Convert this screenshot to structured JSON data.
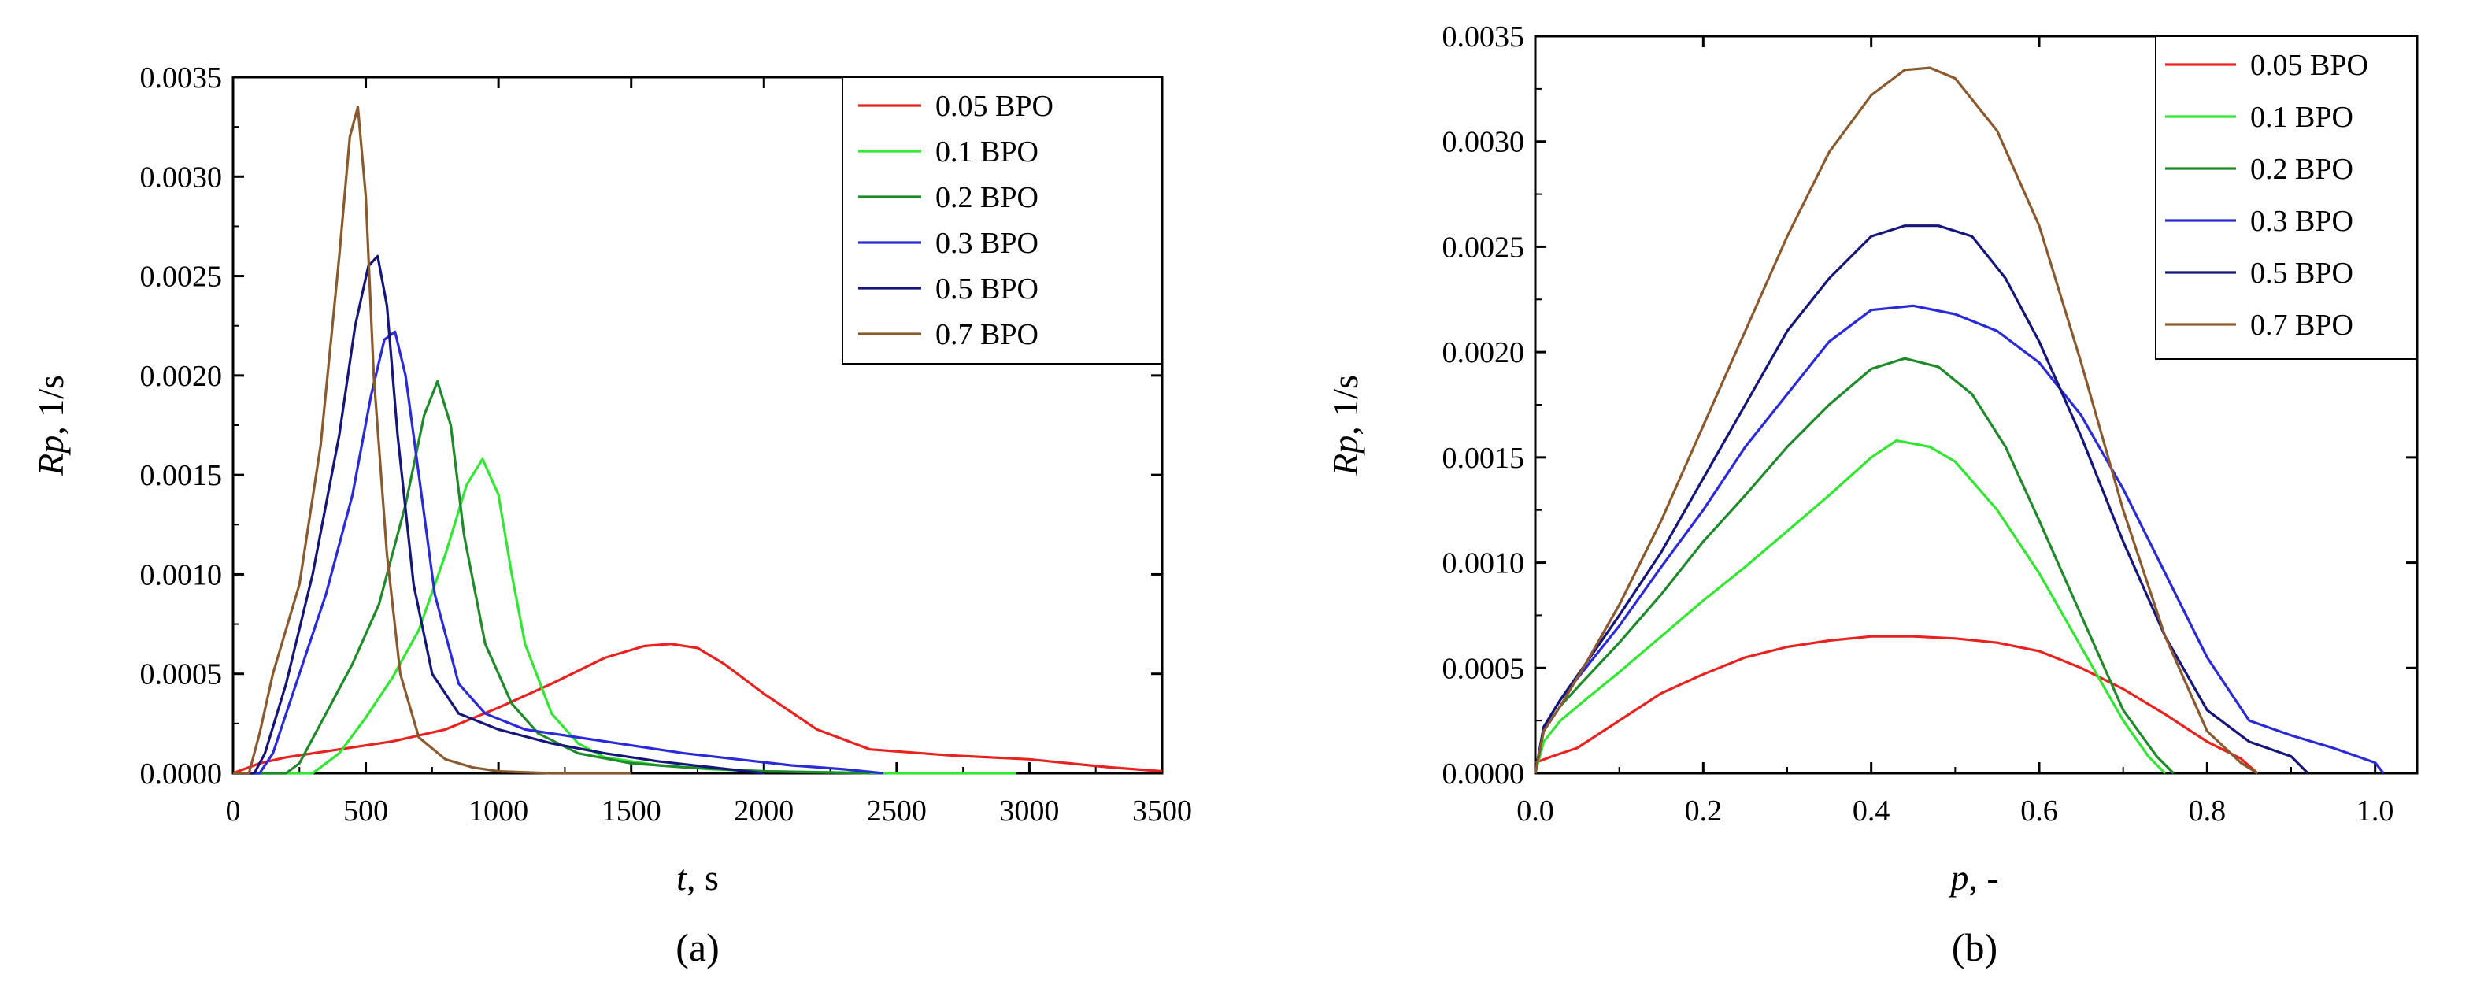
{
  "figure": {
    "panel_a_label": "(a)",
    "panel_b_label": "(b)"
  },
  "chart_data": [
    {
      "id": "a",
      "type": "line",
      "title": "",
      "xlabel_var": "t",
      "xlabel_unit": ", s",
      "ylabel_var": "Rp",
      "ylabel_unit": ", 1/s",
      "xlim": [
        0,
        3500
      ],
      "ylim": [
        0,
        0.0035
      ],
      "xticks": [
        0,
        500,
        1000,
        1500,
        2000,
        2500,
        3000,
        3500
      ],
      "xtick_labels": [
        "0",
        "500",
        "1000",
        "1500",
        "2000",
        "2500",
        "3000",
        "3500"
      ],
      "yticks": [
        0,
        0.0005,
        0.001,
        0.0015,
        0.002,
        0.0025,
        0.003,
        0.0035
      ],
      "ytick_labels": [
        "0.0000",
        "0.0005",
        "0.0010",
        "0.0015",
        "0.0020",
        "0.0025",
        "0.0030",
        "0.0035"
      ],
      "grid": false,
      "legend_position": "top-right",
      "series": [
        {
          "name": "0.05 BPO",
          "color": "#e8231f",
          "x": [
            0,
            100,
            200,
            400,
            600,
            800,
            1000,
            1200,
            1400,
            1550,
            1650,
            1750,
            1850,
            2000,
            2200,
            2400,
            2700,
            3000,
            3300,
            3500
          ],
          "y": [
            0.0,
            5e-05,
            8e-05,
            0.00012,
            0.00016,
            0.00022,
            0.00033,
            0.00045,
            0.00058,
            0.00064,
            0.00065,
            0.00063,
            0.00055,
            0.0004,
            0.00022,
            0.00012,
            9e-05,
            7e-05,
            3e-05,
            1e-05
          ]
        },
        {
          "name": "0.1 BPO",
          "color": "#32e632",
          "x": [
            0,
            300,
            400,
            500,
            600,
            700,
            800,
            880,
            940,
            1000,
            1050,
            1100,
            1200,
            1300,
            1400,
            1600,
            1800,
            2000,
            2500,
            2950
          ],
          "y": [
            0.0,
            0.0,
            0.0001,
            0.00028,
            0.00048,
            0.00072,
            0.0011,
            0.00145,
            0.00158,
            0.0014,
            0.001,
            0.00065,
            0.0003,
            0.00015,
            8e-05,
            4e-05,
            2e-05,
            1e-05,
            0.0,
            0.0
          ]
        },
        {
          "name": "0.2 BPO",
          "color": "#1f8a2a",
          "x": [
            0,
            200,
            250,
            350,
            450,
            550,
            650,
            720,
            770,
            820,
            870,
            950,
            1050,
            1150,
            1300,
            1500,
            1700,
            2000,
            2400
          ],
          "y": [
            0.0,
            0.0,
            5e-05,
            0.0003,
            0.00055,
            0.00085,
            0.00135,
            0.0018,
            0.00197,
            0.00175,
            0.0012,
            0.00065,
            0.00035,
            0.0002,
            0.0001,
            5e-05,
            3e-05,
            1e-05,
            0.0
          ]
        },
        {
          "name": "0.3 BPO",
          "color": "#2a2ad8",
          "x": [
            0,
            100,
            150,
            250,
            350,
            450,
            520,
            570,
            610,
            650,
            700,
            760,
            850,
            950,
            1100,
            1300,
            1500,
            1700,
            1900,
            2100,
            2300,
            2450
          ],
          "y": [
            0.0,
            0.0,
            0.0001,
            0.0005,
            0.0009,
            0.0014,
            0.0019,
            0.00218,
            0.00222,
            0.002,
            0.0015,
            0.0009,
            0.00045,
            0.0003,
            0.00022,
            0.00018,
            0.00014,
            0.0001,
            7e-05,
            4e-05,
            2e-05,
            0.0
          ]
        },
        {
          "name": "0.5 BPO",
          "color": "#15157a",
          "x": [
            0,
            80,
            120,
            200,
            300,
            400,
            460,
            510,
            545,
            580,
            620,
            680,
            750,
            850,
            1000,
            1200,
            1400,
            1600,
            1800,
            2000
          ],
          "y": [
            0.0,
            0.0,
            0.0001,
            0.00045,
            0.001,
            0.0017,
            0.00225,
            0.00255,
            0.0026,
            0.00235,
            0.0017,
            0.00095,
            0.0005,
            0.0003,
            0.00022,
            0.00015,
            0.0001,
            6e-05,
            3e-05,
            0.0
          ]
        },
        {
          "name": "0.7 BPO",
          "color": "#8a5a2e",
          "x": [
            0,
            60,
            100,
            150,
            250,
            330,
            400,
            440,
            470,
            500,
            530,
            580,
            630,
            700,
            800,
            900,
            1000,
            1200,
            1500
          ],
          "y": [
            0.0,
            0.0,
            0.0002,
            0.0005,
            0.00095,
            0.00165,
            0.0026,
            0.0032,
            0.00335,
            0.0029,
            0.002,
            0.0011,
            0.0005,
            0.00018,
            7e-05,
            3e-05,
            1e-05,
            0.0,
            0.0
          ]
        }
      ]
    },
    {
      "id": "b",
      "type": "line",
      "title": "",
      "xlabel_var": "p",
      "xlabel_unit": ", -",
      "ylabel_var": "Rp",
      "ylabel_unit": ", 1/s",
      "xlim": [
        0,
        1.05
      ],
      "ylim": [
        0,
        0.0035
      ],
      "xticks": [
        0,
        0.2,
        0.4,
        0.6,
        0.8,
        1.0
      ],
      "xtick_labels": [
        "0.0",
        "0.2",
        "0.4",
        "0.6",
        "0.8",
        "1.0"
      ],
      "yticks": [
        0,
        0.0005,
        0.001,
        0.0015,
        0.002,
        0.0025,
        0.003,
        0.0035
      ],
      "ytick_labels": [
        "0.0000",
        "0.0005",
        "0.0010",
        "0.0015",
        "0.0020",
        "0.0025",
        "0.0030",
        "0.0035"
      ],
      "grid": false,
      "legend_position": "top-right",
      "series": [
        {
          "name": "0.05 BPO",
          "color": "#e8231f",
          "x": [
            0.0,
            0.02,
            0.05,
            0.1,
            0.15,
            0.2,
            0.25,
            0.3,
            0.35,
            0.4,
            0.45,
            0.5,
            0.55,
            0.6,
            0.65,
            0.7,
            0.75,
            0.8,
            0.84,
            0.86
          ],
          "y": [
            5e-05,
            8e-05,
            0.00012,
            0.00025,
            0.00038,
            0.00047,
            0.00055,
            0.0006,
            0.00063,
            0.00065,
            0.00065,
            0.00064,
            0.00062,
            0.00058,
            0.0005,
            0.0004,
            0.00028,
            0.00015,
            7e-05,
            0.0
          ]
        },
        {
          "name": "0.1 BPO",
          "color": "#32e632",
          "x": [
            0.0,
            0.01,
            0.03,
            0.06,
            0.1,
            0.15,
            0.2,
            0.25,
            0.3,
            0.35,
            0.4,
            0.43,
            0.47,
            0.5,
            0.55,
            0.6,
            0.65,
            0.7,
            0.73,
            0.75
          ],
          "y": [
            0.0,
            0.00015,
            0.00025,
            0.00035,
            0.00048,
            0.00065,
            0.00082,
            0.00098,
            0.00115,
            0.00132,
            0.0015,
            0.00158,
            0.00155,
            0.00148,
            0.00125,
            0.00095,
            0.0006,
            0.00025,
            8e-05,
            0.0
          ]
        },
        {
          "name": "0.2 BPO",
          "color": "#1f8a2a",
          "x": [
            0.0,
            0.01,
            0.03,
            0.06,
            0.1,
            0.15,
            0.2,
            0.25,
            0.3,
            0.35,
            0.4,
            0.44,
            0.48,
            0.52,
            0.56,
            0.6,
            0.65,
            0.7,
            0.74,
            0.76
          ],
          "y": [
            0.0,
            0.0002,
            0.00032,
            0.00045,
            0.00062,
            0.00085,
            0.0011,
            0.00132,
            0.00155,
            0.00175,
            0.00192,
            0.00197,
            0.00193,
            0.0018,
            0.00155,
            0.0012,
            0.00075,
            0.0003,
            8e-05,
            0.0
          ]
        },
        {
          "name": "0.3 BPO",
          "color": "#2a2ad8",
          "x": [
            0.0,
            0.01,
            0.03,
            0.06,
            0.1,
            0.15,
            0.2,
            0.25,
            0.3,
            0.35,
            0.4,
            0.45,
            0.5,
            0.55,
            0.6,
            0.65,
            0.7,
            0.75,
            0.8,
            0.85,
            0.9,
            0.95,
            1.0,
            1.01
          ],
          "y": [
            0.0,
            0.00022,
            0.00035,
            0.0005,
            0.0007,
            0.00098,
            0.00125,
            0.00155,
            0.0018,
            0.00205,
            0.0022,
            0.00222,
            0.00218,
            0.0021,
            0.00195,
            0.0017,
            0.00135,
            0.00095,
            0.00055,
            0.00025,
            0.00018,
            0.00012,
            5e-05,
            0.0
          ]
        },
        {
          "name": "0.5 BPO",
          "color": "#15157a",
          "x": [
            0.0,
            0.01,
            0.03,
            0.06,
            0.1,
            0.15,
            0.2,
            0.25,
            0.3,
            0.35,
            0.4,
            0.44,
            0.48,
            0.52,
            0.56,
            0.6,
            0.65,
            0.7,
            0.75,
            0.8,
            0.85,
            0.9,
            0.92
          ],
          "y": [
            0.0,
            0.00022,
            0.00035,
            0.00052,
            0.00075,
            0.00105,
            0.0014,
            0.00175,
            0.0021,
            0.00235,
            0.00255,
            0.0026,
            0.0026,
            0.00255,
            0.00235,
            0.00205,
            0.0016,
            0.0011,
            0.00065,
            0.0003,
            0.00015,
            8e-05,
            0.0
          ]
        },
        {
          "name": "0.7 BPO",
          "color": "#8a5a2e",
          "x": [
            0.0,
            0.01,
            0.03,
            0.06,
            0.1,
            0.15,
            0.2,
            0.25,
            0.3,
            0.35,
            0.4,
            0.44,
            0.47,
            0.5,
            0.55,
            0.6,
            0.65,
            0.7,
            0.75,
            0.8,
            0.84,
            0.86
          ],
          "y": [
            0.0,
            0.0002,
            0.00032,
            0.00052,
            0.0008,
            0.0012,
            0.00165,
            0.0021,
            0.00255,
            0.00295,
            0.00322,
            0.00334,
            0.00335,
            0.0033,
            0.00305,
            0.0026,
            0.00195,
            0.00125,
            0.00065,
            0.0002,
            5e-05,
            0.0
          ]
        }
      ]
    }
  ]
}
